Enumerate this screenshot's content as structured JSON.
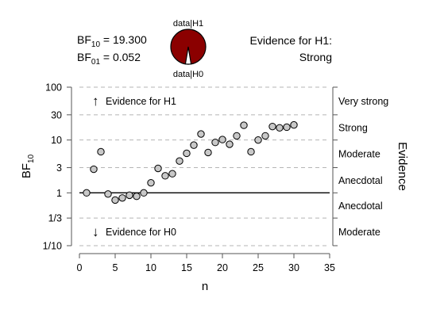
{
  "header": {
    "bf10_label": "BF",
    "bf10_sub": "10",
    "bf10_value": "= 19.300",
    "bf01_label": "BF",
    "bf01_sub": "01",
    "bf01_value": "= 0.052",
    "pie_top_label": "data|H1",
    "pie_bottom_label": "data|H0",
    "evidence_line1": "Evidence for H1:",
    "evidence_line2": "Strong"
  },
  "colors": {
    "pie_h1": "#8b0000",
    "pie_h0": "#ffffff",
    "points_fill": "#c8c8c8",
    "grid": "#b5b5b5"
  },
  "chart_data": {
    "type": "scatter",
    "xlabel": "n",
    "ylabel": "BF10",
    "y_scale": "log",
    "xlim": [
      0,
      35
    ],
    "ylim": [
      0.1,
      100
    ],
    "x_ticks": [
      "0",
      "5",
      "10",
      "15",
      "20",
      "25",
      "30",
      "35"
    ],
    "x_tick_values": [
      0,
      5,
      10,
      15,
      20,
      25,
      30,
      35
    ],
    "y_ticks": [
      "1/10",
      "1/3",
      "1",
      "3",
      "10",
      "30",
      "100"
    ],
    "y_tick_values": [
      0.1,
      0.3333,
      1,
      3,
      10,
      30,
      100
    ],
    "right_axis_title": "Evidence",
    "evidence_labels": [
      {
        "label": "Very strong",
        "y": 54.8
      },
      {
        "label": "Strong",
        "y": 17.3
      },
      {
        "label": "Moderate",
        "y": 5.48
      },
      {
        "label": "Anecdotal",
        "y": 1.73
      },
      {
        "label": "Anecdotal",
        "y": 0.577
      },
      {
        "label": "Moderate",
        "y": 0.183
      }
    ],
    "annotations": [
      {
        "text": "Evidence for H1",
        "arrow": "up"
      },
      {
        "text": "Evidence for H0",
        "arrow": "down"
      }
    ],
    "reference_line_y": 1,
    "series": [
      {
        "x": [
          1,
          2,
          3,
          4,
          5,
          6,
          7,
          8,
          9,
          10,
          11,
          12,
          13,
          14,
          15,
          16,
          17,
          18,
          19,
          20,
          21,
          22,
          23,
          24,
          25,
          26,
          27,
          28,
          29,
          30
        ],
        "y": [
          1.0,
          2.8,
          6.0,
          0.95,
          0.73,
          0.8,
          0.9,
          0.86,
          1.0,
          1.55,
          2.9,
          2.1,
          2.3,
          4.0,
          5.6,
          8.0,
          13.0,
          5.8,
          9.0,
          10.2,
          8.3,
          12.0,
          19.0,
          6.0,
          10.0,
          12.0,
          18.0,
          17.0,
          17.5,
          19.3
        ]
      }
    ],
    "bf10": 19.3,
    "bf01": 0.052
  }
}
